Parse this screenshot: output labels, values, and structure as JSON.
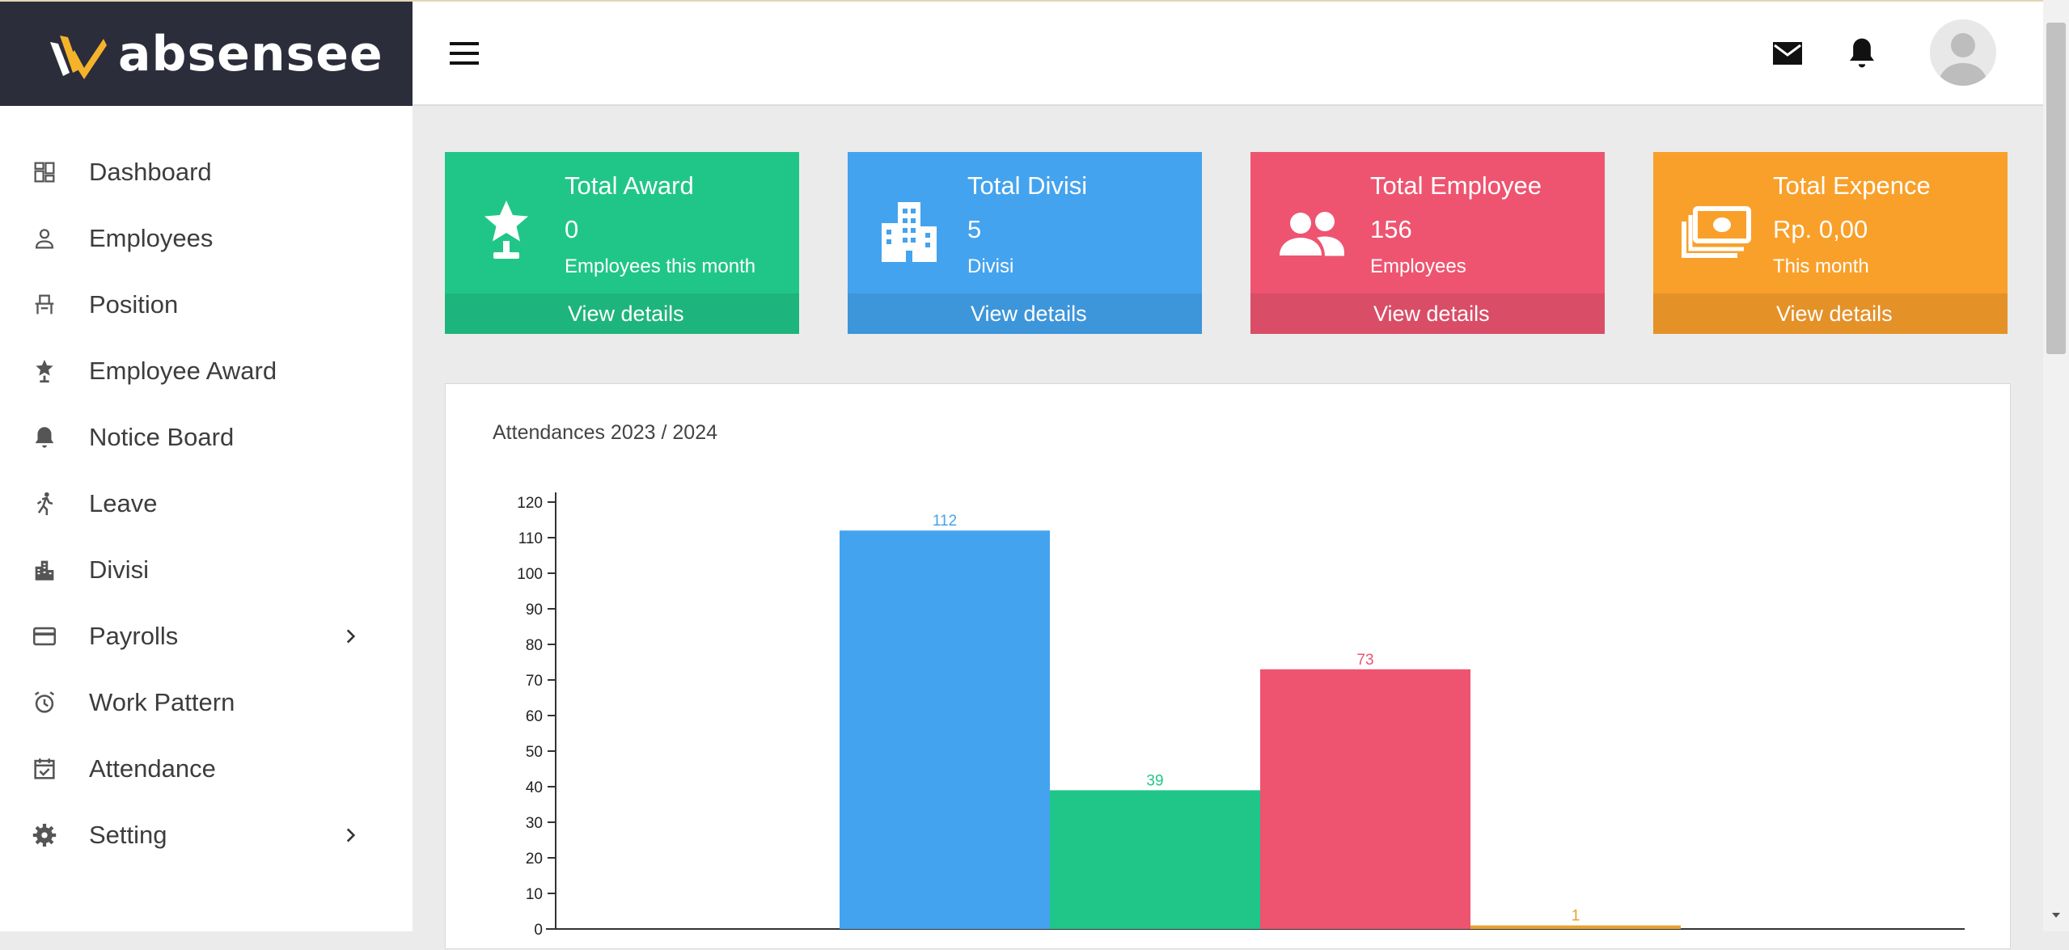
{
  "app": {
    "brand": "absensee"
  },
  "sidebar": {
    "items": [
      {
        "label": "Dashboard",
        "icon": "dashboard-icon"
      },
      {
        "label": "Employees",
        "icon": "person-icon"
      },
      {
        "label": "Position",
        "icon": "chair-icon"
      },
      {
        "label": "Employee Award",
        "icon": "award-icon"
      },
      {
        "label": "Notice Board",
        "icon": "bell-icon"
      },
      {
        "label": "Leave",
        "icon": "running-person-icon"
      },
      {
        "label": "Divisi",
        "icon": "building-icon"
      },
      {
        "label": "Payrolls",
        "icon": "credit-card-icon"
      },
      {
        "label": "Work Pattern",
        "icon": "alarm-clock-icon"
      },
      {
        "label": "Attendance",
        "icon": "calendar-check-icon"
      },
      {
        "label": "Setting",
        "icon": "gear-icon"
      }
    ]
  },
  "header": {
    "icons": [
      "menu-icon",
      "mail-icon",
      "bell-icon",
      "avatar"
    ]
  },
  "cards": [
    {
      "title": "Total Award",
      "value": "0",
      "sub": "Employees this month",
      "footer": "View details",
      "icon": "award-icon",
      "color": "#20c688"
    },
    {
      "title": "Total Divisi",
      "value": "5",
      "sub": "Divisi",
      "footer": "View details",
      "icon": "building-icon",
      "color": "#44a3ee"
    },
    {
      "title": "Total Employee",
      "value": "156",
      "sub": "Employees",
      "footer": "View details",
      "icon": "people-icon",
      "color": "#ee5470"
    },
    {
      "title": "Total Expence",
      "value": "Rp. 0,00",
      "sub": "This month",
      "footer": "View details",
      "icon": "money-icon",
      "color": "#f9a02a"
    }
  ],
  "chart_data": {
    "type": "bar",
    "title": "Attendances 2023 / 2024",
    "xlabel": "",
    "ylabel": "",
    "ylim": [
      0,
      125
    ],
    "ticks": [
      0,
      10,
      20,
      30,
      40,
      50,
      60,
      70,
      80,
      90,
      100,
      110,
      120
    ],
    "values": [
      112,
      39,
      73,
      1
    ],
    "colors": [
      "#44a3ee",
      "#20c688",
      "#ee5470",
      "#e8a12e"
    ],
    "grid": false,
    "legend": "none"
  }
}
